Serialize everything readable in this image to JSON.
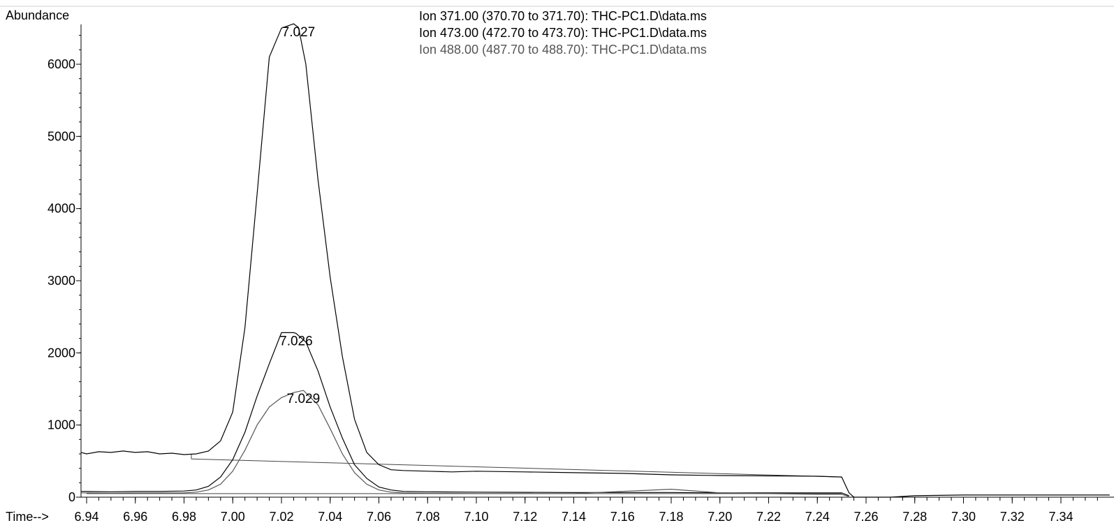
{
  "chart_data": {
    "type": "line",
    "ylabel": "Abundance",
    "xlabel_prefix": "Time-->",
    "xlim": [
      6.935,
      7.36
    ],
    "ylim": [
      0,
      6700
    ],
    "x_ticks": [
      6.94,
      6.96,
      6.98,
      7.0,
      7.02,
      7.04,
      7.06,
      7.08,
      7.1,
      7.12,
      7.14,
      7.16,
      7.18,
      7.2,
      7.22,
      7.24,
      7.26,
      7.28,
      7.3,
      7.32,
      7.34
    ],
    "x_tick_labels": [
      "6.94",
      "6.96",
      "6.98",
      "7.00",
      "7.02",
      "7.04",
      "7.06",
      "7.08",
      "7.10",
      "7.12",
      "7.14",
      "7.16",
      "7.18",
      "7.20",
      "7.22",
      "7.24",
      "7.26",
      "7.28",
      "7.30",
      "7.32",
      "7.34"
    ],
    "y_ticks": [
      0,
      1000,
      2000,
      3000,
      4000,
      5000,
      6000
    ],
    "y_tick_labels": [
      "0",
      "1000",
      "2000",
      "3000",
      "4000",
      "5000",
      "6000"
    ],
    "legend": [
      {
        "text": "Ion 371.00 (370.70 to 371.70): THC-PC1.D\\data.ms",
        "color": "#000000"
      },
      {
        "text": "Ion 473.00 (472.70 to 473.70): THC-PC1.D\\data.ms",
        "color": "#000000"
      },
      {
        "text": "Ion 488.00 (487.70 to 488.70): THC-PC1.D\\data.ms",
        "color": "#555555"
      }
    ],
    "series": [
      {
        "name": "Ion 371.00 (370.70 to 371.70): THC-PC1.D\\data.ms",
        "color": "#000000",
        "x": [
          6.935,
          6.94,
          6.945,
          6.95,
          6.955,
          6.96,
          6.965,
          6.97,
          6.975,
          6.98,
          6.985,
          6.99,
          6.995,
          7.0,
          7.005,
          7.01,
          7.015,
          7.02,
          7.025,
          7.027,
          7.03,
          7.035,
          7.04,
          7.045,
          7.05,
          7.055,
          7.06,
          7.065,
          7.07,
          7.08,
          7.09,
          7.1,
          7.12,
          7.14,
          7.16,
          7.18,
          7.2,
          7.22,
          7.24,
          7.25,
          7.253,
          7.255,
          7.26,
          7.27,
          7.28,
          7.3,
          7.32,
          7.34,
          7.36
        ],
        "y": [
          620,
          600,
          630,
          620,
          640,
          620,
          630,
          600,
          610,
          590,
          600,
          640,
          780,
          1180,
          2350,
          4200,
          6100,
          6500,
          6560,
          6510,
          6000,
          4400,
          3050,
          1950,
          1080,
          620,
          450,
          380,
          370,
          360,
          350,
          360,
          350,
          340,
          330,
          310,
          300,
          295,
          290,
          280,
          60,
          0,
          0,
          0,
          20,
          30,
          30,
          30,
          30
        ]
      },
      {
        "name": "Ion 473.00 (472.70 to 473.70): THC-PC1.D\\data.ms",
        "color": "#000000",
        "x": [
          6.935,
          6.95,
          6.96,
          6.97,
          6.98,
          6.985,
          6.99,
          6.995,
          7.0,
          7.005,
          7.01,
          7.015,
          7.02,
          7.025,
          7.026,
          7.03,
          7.035,
          7.04,
          7.045,
          7.05,
          7.055,
          7.06,
          7.065,
          7.07,
          7.08,
          7.1,
          7.14,
          7.18,
          7.2,
          7.24,
          7.25,
          7.253
        ],
        "y": [
          80,
          75,
          80,
          80,
          85,
          100,
          150,
          280,
          520,
          900,
          1400,
          1850,
          2280,
          2280,
          2270,
          2150,
          1750,
          1250,
          820,
          450,
          260,
          140,
          100,
          80,
          75,
          70,
          65,
          65,
          60,
          60,
          60,
          20
        ]
      },
      {
        "name": "Ion 488.00 (487.70 to 488.70): THC-PC1.D\\data.ms",
        "color": "#555555",
        "x": [
          6.935,
          6.95,
          6.96,
          6.97,
          6.98,
          6.985,
          6.99,
          6.995,
          7.0,
          7.005,
          7.01,
          7.015,
          7.02,
          7.025,
          7.029,
          7.035,
          7.04,
          7.045,
          7.05,
          7.055,
          7.06,
          7.065,
          7.07,
          7.08,
          7.1,
          7.14,
          7.16,
          7.18,
          7.2,
          7.24,
          7.25,
          7.253
        ],
        "y": [
          60,
          55,
          60,
          60,
          60,
          70,
          100,
          180,
          360,
          650,
          1000,
          1250,
          1380,
          1450,
          1480,
          1280,
          950,
          600,
          340,
          180,
          100,
          70,
          60,
          55,
          50,
          50,
          80,
          110,
          60,
          40,
          40,
          10
        ]
      }
    ],
    "baselines": [
      {
        "x": [
          6.983,
          7.25
        ],
        "y": [
          530,
          280
        ]
      },
      {
        "x": [
          6.94,
          7.25
        ],
        "y": [
          50,
          50
        ]
      }
    ],
    "peak_labels": [
      {
        "text": "7.027",
        "x": 7.027,
        "y": 6560
      },
      {
        "text": "7.026",
        "x": 7.026,
        "y": 2280
      },
      {
        "text": "7.029",
        "x": 7.029,
        "y": 1480
      }
    ]
  }
}
